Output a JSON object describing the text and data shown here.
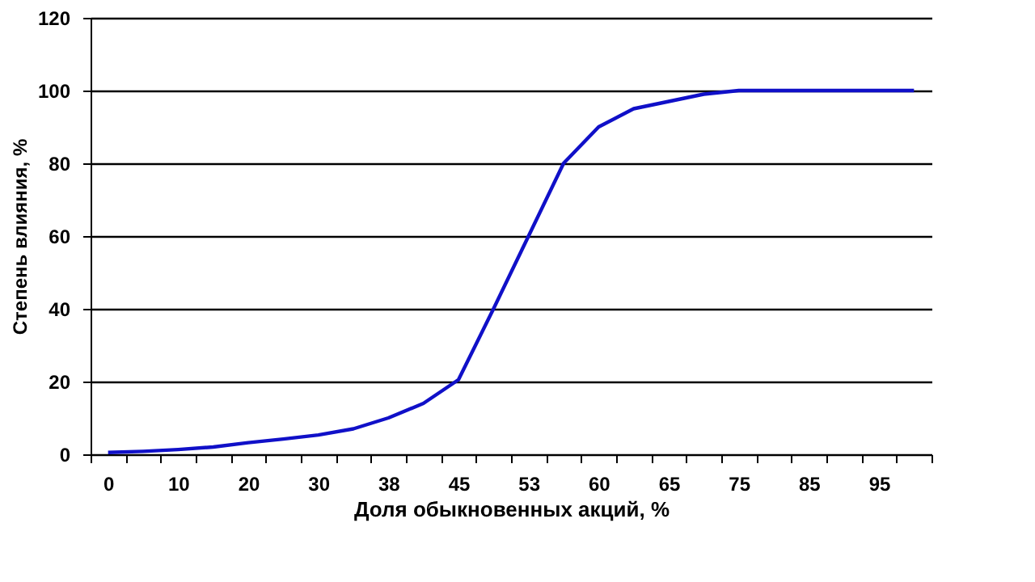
{
  "chart_data": {
    "type": "line",
    "xlabel": "Доля обыкновенных акций, %",
    "ylabel": "Степень влияния, %",
    "categories": [
      "0",
      null,
      "10",
      null,
      "20",
      null,
      "30",
      null,
      "38",
      null,
      "45",
      null,
      "53",
      null,
      "60",
      null,
      "65",
      null,
      "75",
      null,
      "85",
      null,
      "95",
      null
    ],
    "series": [
      {
        "color": "#1010c8",
        "values": [
          0.5,
          0.8,
          1.3,
          2,
          3.2,
          4.2,
          5.3,
          7,
          10,
          14,
          20.5,
          40,
          60,
          80,
          90,
          95,
          97,
          99,
          100,
          100,
          100,
          100,
          100,
          100
        ]
      }
    ],
    "ylim": [
      0,
      120
    ],
    "yticks": [
      0,
      20,
      40,
      60,
      80,
      100,
      120
    ],
    "grid": "y",
    "marker": "none",
    "line_style": "solid",
    "legend": false
  }
}
